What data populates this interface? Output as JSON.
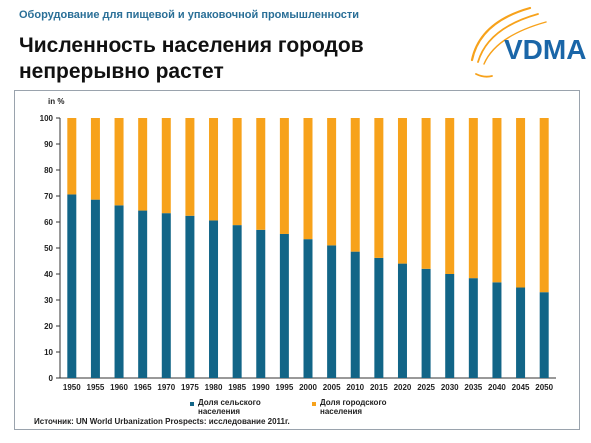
{
  "header": {
    "subtitle": "Оборудование для пищевой и упаковочной промышленности",
    "title_line1": "Численность населения городов",
    "title_line2": "непрерывно растет",
    "logo_text": "VDMA"
  },
  "colors": {
    "rural": "#126587",
    "urban": "#F7A21B",
    "accent": "#F7A21B",
    "header_text": "#2a6f97"
  },
  "source": "Источник: UN World Urbanization Prospects: исследование 2011г.",
  "chart_data": {
    "type": "bar",
    "stacked": true,
    "ylabel": "in %",
    "ylim": [
      0,
      100
    ],
    "yticks": [
      0,
      10,
      20,
      30,
      40,
      50,
      60,
      70,
      80,
      90,
      100
    ],
    "grid": false,
    "legend_position": "bottom",
    "categories": [
      "1950",
      "1955",
      "1960",
      "1965",
      "1970",
      "1975",
      "1980",
      "1985",
      "1990",
      "1995",
      "2000",
      "2005",
      "2010",
      "2015",
      "2020",
      "2025",
      "2030",
      "2035",
      "2040",
      "2045",
      "2050"
    ],
    "series": [
      {
        "name": "Доля сельского населения",
        "color": "#126587",
        "values": [
          70.6,
          68.6,
          66.4,
          64.4,
          63.4,
          62.4,
          60.6,
          58.8,
          57.0,
          55.4,
          53.4,
          51.0,
          48.6,
          46.2,
          44.0,
          42.0,
          40.0,
          38.4,
          36.8,
          34.8,
          33.0
        ]
      },
      {
        "name": "Доля городского населения",
        "color": "#F7A21B",
        "values": [
          29.4,
          31.4,
          33.6,
          35.6,
          36.6,
          37.6,
          39.4,
          41.2,
          43.0,
          44.6,
          46.6,
          49.0,
          51.4,
          53.8,
          56.0,
          58.0,
          60.0,
          61.6,
          63.2,
          65.2,
          67.0
        ]
      }
    ],
    "legend": [
      {
        "line1": "Доля сельского",
        "line2": "населения"
      },
      {
        "line1": "Доля городского",
        "line2": "населения"
      }
    ]
  }
}
